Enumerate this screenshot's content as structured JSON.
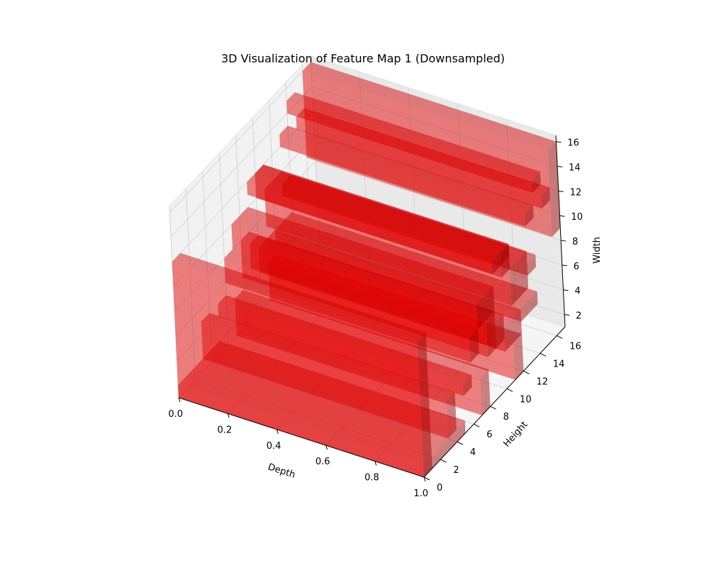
{
  "chart_data": {
    "type": "voxel3d",
    "title": "3D Visualization of Feature Map 1 (Downsampled)",
    "xlabel": "Depth",
    "ylabel": "Height",
    "zlabel": "Width",
    "xlim": [
      0,
      1
    ],
    "ylim": [
      0,
      17
    ],
    "zlim": [
      1,
      16.5
    ],
    "x_ticks": [
      "0.0",
      "0.2",
      "0.4",
      "0.6",
      "0.8",
      "1.0"
    ],
    "y_ticks": [
      "0",
      "2",
      "4",
      "6",
      "8",
      "10",
      "12",
      "14",
      "16"
    ],
    "z_ticks": [
      "2",
      "4",
      "6",
      "8",
      "10",
      "12",
      "14",
      "16"
    ],
    "voxel_color": "#ff0000",
    "voxel_alpha": 0.5,
    "grid": true,
    "voxels": [
      {
        "x": [
          0,
          1
        ],
        "y": [
          0,
          1
        ],
        "z": [
          1,
          12
        ]
      },
      {
        "x": [
          0,
          1
        ],
        "y": [
          0,
          5
        ],
        "z": [
          1,
          2
        ]
      },
      {
        "x": [
          0,
          1
        ],
        "y": [
          3,
          4
        ],
        "z": [
          2,
          5
        ]
      },
      {
        "x": [
          0,
          1
        ],
        "y": [
          7,
          8
        ],
        "z": [
          1,
          4
        ]
      },
      {
        "x": [
          0,
          1
        ],
        "y": [
          11,
          12
        ],
        "z": [
          1,
          4
        ]
      },
      {
        "x": [
          0,
          1
        ],
        "y": [
          10,
          12
        ],
        "z": [
          4,
          6
        ]
      },
      {
        "x": [
          0,
          1
        ],
        "y": [
          5,
          6
        ],
        "z": [
          4,
          5
        ]
      },
      {
        "x": [
          0,
          1
        ],
        "y": [
          6,
          7
        ],
        "z": [
          6,
          8
        ]
      },
      {
        "x": [
          0,
          1
        ],
        "y": [
          8,
          9
        ],
        "z": [
          5,
          8
        ]
      },
      {
        "x": [
          0,
          1
        ],
        "y": [
          9,
          10
        ],
        "z": [
          5,
          7
        ]
      },
      {
        "x": [
          0,
          1
        ],
        "y": [
          12,
          14
        ],
        "z": [
          5,
          6
        ]
      },
      {
        "x": [
          0,
          1
        ],
        "y": [
          7,
          9
        ],
        "z": [
          8,
          10
        ]
      },
      {
        "x": [
          0,
          1
        ],
        "y": [
          11,
          13
        ],
        "z": [
          7,
          10
        ]
      },
      {
        "x": [
          0,
          1
        ],
        "y": [
          13,
          14
        ],
        "z": [
          8,
          9
        ]
      },
      {
        "x": [
          0,
          1
        ],
        "y": [
          10,
          11
        ],
        "z": [
          10,
          12
        ]
      },
      {
        "x": [
          0,
          1
        ],
        "y": [
          9,
          11
        ],
        "z": [
          11,
          12
        ]
      },
      {
        "x": [
          0,
          1
        ],
        "y": [
          13,
          14
        ],
        "z": [
          12,
          13
        ]
      },
      {
        "x": [
          0,
          1
        ],
        "y": [
          14,
          15
        ],
        "z": [
          14,
          15
        ]
      },
      {
        "x": [
          0,
          1
        ],
        "y": [
          16,
          17
        ],
        "z": [
          9,
          16
        ]
      },
      {
        "x": [
          0,
          1
        ],
        "y": [
          15,
          16
        ],
        "z": [
          12,
          13
        ]
      }
    ]
  }
}
